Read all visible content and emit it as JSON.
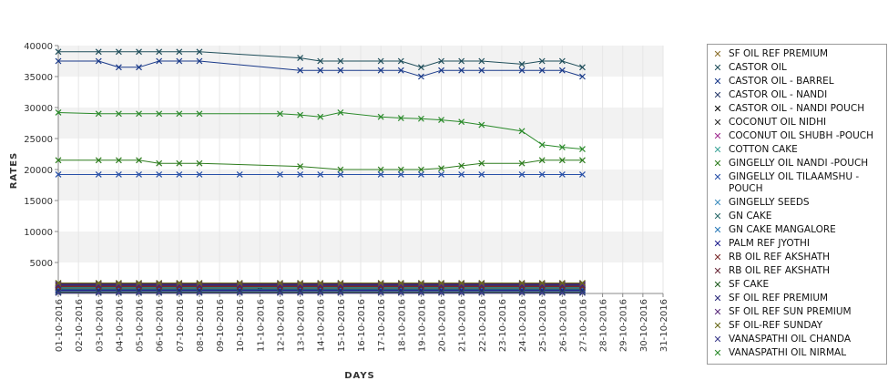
{
  "chart_data": {
    "type": "line",
    "title": "",
    "xlabel": "DAYS",
    "ylabel": "RATES",
    "ylim": [
      0,
      40000
    ],
    "yticks": [
      5000,
      10000,
      15000,
      20000,
      25000,
      30000,
      35000,
      40000
    ],
    "ytick_labels": [
      "5000",
      "10000",
      "15000",
      "20000",
      "25000",
      "30000",
      "35000",
      "40000"
    ],
    "x": [
      "01-10-2016",
      "02-10-2016",
      "03-10-2016",
      "04-10-2016",
      "05-10-2016",
      "06-10-2016",
      "07-10-2016",
      "08-10-2016",
      "09-10-2016",
      "10-10-2016",
      "11-10-2016",
      "12-10-2016",
      "13-10-2016",
      "14-10-2016",
      "15-10-2016",
      "16-10-2016",
      "17-10-2016",
      "18-10-2016",
      "19-10-2016",
      "20-10-2016",
      "21-10-2016",
      "22-10-2016",
      "23-10-2016",
      "24-10-2016",
      "25-10-2016",
      "26-10-2016",
      "27-10-2016",
      "28-10-2016",
      "29-10-2016",
      "30-10-2016",
      "31-10-2016"
    ],
    "grid": "horizontal bands",
    "legend_position": "right",
    "series": [
      {
        "name": " SF OIL REF PREMIUM",
        "color": "#8b6f2a",
        "values": [
          800,
          null,
          800,
          800,
          800,
          800,
          800,
          800,
          null,
          800,
          null,
          800,
          800,
          800,
          800,
          null,
          800,
          800,
          800,
          800,
          800,
          800,
          null,
          800,
          800,
          800,
          800,
          null,
          null,
          null,
          null
        ]
      },
      {
        "name": "CASTOR OIL",
        "color": "#1f4e5a",
        "values": [
          39000,
          null,
          39000,
          39000,
          39000,
          39000,
          39000,
          39000,
          null,
          null,
          null,
          null,
          38000,
          37500,
          37500,
          null,
          37500,
          37500,
          36500,
          37500,
          37500,
          37500,
          null,
          37000,
          37500,
          37500,
          36500,
          null,
          null,
          null,
          null
        ]
      },
      {
        "name": "CASTOR OIL - BARREL",
        "color": "#1a3a8a",
        "values": [
          37500,
          null,
          37500,
          36500,
          36500,
          37500,
          37500,
          37500,
          null,
          null,
          null,
          null,
          36000,
          36000,
          36000,
          null,
          36000,
          36000,
          35000,
          36000,
          36000,
          36000,
          null,
          36000,
          36000,
          36000,
          35000,
          null,
          null,
          null,
          null
        ]
      },
      {
        "name": "CASTOR OIL - NANDI",
        "color": "#2a3c6c",
        "values": [
          1200,
          null,
          1200,
          1200,
          1200,
          1200,
          1200,
          1200,
          null,
          1200,
          null,
          1200,
          1200,
          1200,
          1200,
          null,
          1200,
          1200,
          1200,
          1200,
          1200,
          1200,
          null,
          1200,
          1200,
          1200,
          1200,
          null,
          null,
          null,
          null
        ]
      },
      {
        "name": "CASTOR OIL - NANDI POUCH",
        "color": "#000000",
        "values": [
          600,
          null,
          600,
          600,
          600,
          600,
          600,
          600,
          null,
          600,
          600,
          600,
          600,
          600,
          600,
          null,
          600,
          600,
          600,
          600,
          600,
          600,
          null,
          600,
          600,
          600,
          600,
          null,
          null,
          null,
          null
        ]
      },
      {
        "name": "COCONUT OIL NIDHI",
        "color": "#2b2b2b",
        "values": [
          1600,
          null,
          1600,
          1600,
          1600,
          1600,
          1600,
          1600,
          null,
          1600,
          null,
          1600,
          1600,
          1600,
          1600,
          null,
          1600,
          1600,
          1600,
          1600,
          1600,
          1600,
          null,
          1600,
          1600,
          1600,
          1600,
          null,
          null,
          null,
          null
        ]
      },
      {
        "name": "COCONUT OIL SHUBH -POUCH",
        "color": "#a02c8f",
        "values": [
          300,
          null,
          300,
          300,
          300,
          300,
          300,
          300,
          null,
          300,
          null,
          300,
          300,
          300,
          300,
          null,
          300,
          300,
          300,
          300,
          300,
          300,
          null,
          300,
          300,
          300,
          300,
          null,
          null,
          null,
          null
        ]
      },
      {
        "name": "COTTON CAKE",
        "color": "#3fa59a",
        "values": [
          1000,
          null,
          1000,
          1000,
          1000,
          1000,
          1000,
          1000,
          null,
          1000,
          null,
          1000,
          1000,
          1000,
          1000,
          null,
          1000,
          1000,
          1000,
          1000,
          1000,
          1000,
          null,
          1000,
          1000,
          1000,
          1000,
          null,
          null,
          null,
          null
        ]
      },
      {
        "name": "GINGELLY OIL NANDI -POUCH",
        "color": "#2e7d1e",
        "values": [
          21500,
          null,
          21500,
          21500,
          21500,
          21000,
          21000,
          21000,
          null,
          null,
          null,
          null,
          20500,
          null,
          20000,
          null,
          20000,
          20000,
          20000,
          20200,
          20600,
          21000,
          null,
          21000,
          21500,
          21500,
          21500,
          null,
          null,
          null,
          null
        ]
      },
      {
        "name": "GINGELLY OIL TILAAMSHU -POUCH",
        "color": "#2850a8",
        "values": [
          19200,
          null,
          19200,
          19200,
          19200,
          19200,
          19200,
          19200,
          null,
          19200,
          null,
          19200,
          19200,
          19200,
          19200,
          null,
          19200,
          19200,
          19200,
          19200,
          19200,
          19200,
          null,
          19200,
          19200,
          19200,
          19200,
          null,
          null,
          null,
          null
        ]
      },
      {
        "name": "GINGELLY SEEDS",
        "color": "#3f8fbf",
        "values": [
          400,
          null,
          400,
          400,
          400,
          400,
          400,
          400,
          null,
          400,
          null,
          400,
          400,
          400,
          400,
          null,
          400,
          400,
          400,
          400,
          400,
          400,
          null,
          400,
          400,
          400,
          400,
          null,
          null,
          null,
          null
        ]
      },
      {
        "name": "GN CAKE",
        "color": "#2a6a6a",
        "values": [
          900,
          null,
          900,
          900,
          900,
          900,
          900,
          900,
          null,
          900,
          null,
          900,
          900,
          900,
          900,
          null,
          900,
          900,
          900,
          900,
          900,
          900,
          null,
          900,
          900,
          900,
          900,
          null,
          null,
          null,
          null
        ]
      },
      {
        "name": "GN CAKE MANGALORE",
        "color": "#2a7ab8",
        "values": [
          700,
          null,
          700,
          700,
          700,
          700,
          700,
          700,
          null,
          700,
          null,
          700,
          700,
          700,
          700,
          null,
          700,
          700,
          700,
          700,
          700,
          700,
          null,
          700,
          700,
          700,
          700,
          null,
          null,
          null,
          null
        ]
      },
      {
        "name": "PALM REF JYOTHI",
        "color": "#1c1c8c",
        "values": [
          500,
          null,
          500,
          500,
          500,
          500,
          500,
          500,
          null,
          500,
          null,
          500,
          500,
          500,
          500,
          null,
          500,
          500,
          500,
          500,
          500,
          500,
          null,
          500,
          500,
          500,
          500,
          null,
          null,
          null,
          null
        ]
      },
      {
        "name": "RB OIL REF  AKSHATH",
        "color": "#7a2a2a",
        "values": [
          1100,
          null,
          1100,
          1100,
          1100,
          1100,
          1100,
          1100,
          null,
          1100,
          null,
          1100,
          1100,
          1100,
          1100,
          null,
          1100,
          1100,
          1100,
          1100,
          1100,
          1100,
          null,
          1100,
          1100,
          1100,
          1100,
          null,
          null,
          null,
          null
        ]
      },
      {
        "name": "RB OIL REF AKSHATH",
        "color": "#6a2a3a",
        "values": [
          1300,
          null,
          1300,
          1300,
          1300,
          1300,
          1300,
          1300,
          null,
          1300,
          null,
          1300,
          1300,
          1300,
          1300,
          null,
          1300,
          1300,
          1300,
          1300,
          1300,
          1300,
          null,
          1300,
          1300,
          1300,
          1300,
          null,
          null,
          null,
          null
        ]
      },
      {
        "name": "SF CAKE",
        "color": "#1e5a1e",
        "values": [
          200,
          null,
          200,
          200,
          200,
          200,
          200,
          200,
          null,
          200,
          null,
          200,
          200,
          200,
          200,
          null,
          200,
          200,
          200,
          200,
          200,
          200,
          null,
          200,
          200,
          200,
          200,
          null,
          null,
          null,
          null
        ]
      },
      {
        "name": "SF OIL REF PREMIUM",
        "color": "#2a2a7a",
        "values": [
          1400,
          null,
          1400,
          1400,
          1400,
          1400,
          1400,
          1400,
          null,
          1400,
          null,
          1400,
          1400,
          1400,
          1400,
          null,
          1400,
          1400,
          1400,
          1400,
          1400,
          1400,
          null,
          1400,
          1400,
          1400,
          1400,
          null,
          null,
          null,
          null
        ]
      },
      {
        "name": "SF OIL REF SUN PREMIUM",
        "color": "#5a2a7a",
        "values": [
          1500,
          null,
          1500,
          1500,
          1500,
          1500,
          1500,
          1500,
          null,
          1500,
          null,
          1500,
          1500,
          1500,
          1500,
          null,
          1500,
          1500,
          1500,
          1500,
          1500,
          1500,
          null,
          1500,
          1500,
          1500,
          1500,
          null,
          null,
          null,
          null
        ]
      },
      {
        "name": "SF OIL-REF SUNDAY",
        "color": "#6a6a1a",
        "values": [
          1700,
          null,
          1700,
          1700,
          1700,
          1700,
          1700,
          1700,
          null,
          1700,
          null,
          1700,
          1700,
          1700,
          1700,
          null,
          1700,
          1700,
          1700,
          1700,
          1700,
          1700,
          null,
          1700,
          1700,
          1700,
          1700,
          null,
          null,
          null,
          null
        ]
      },
      {
        "name": "VANASPATHI OIL CHANDA",
        "color": "#3a3a8a",
        "values": [
          100,
          null,
          100,
          100,
          100,
          100,
          100,
          100,
          null,
          100,
          null,
          100,
          100,
          100,
          100,
          null,
          100,
          100,
          100,
          100,
          100,
          100,
          null,
          100,
          100,
          100,
          100,
          null,
          null,
          null,
          null
        ]
      },
      {
        "name": "VANASPATHI OIL NIRMAL",
        "color": "#2a8a2a",
        "values": [
          29200,
          null,
          29000,
          29000,
          29000,
          29000,
          29000,
          29000,
          null,
          null,
          null,
          29000,
          28800,
          28500,
          29200,
          null,
          28500,
          28300,
          28200,
          28000,
          27700,
          27200,
          null,
          26200,
          24000,
          23600,
          23300,
          null,
          null,
          null,
          null
        ]
      }
    ]
  }
}
